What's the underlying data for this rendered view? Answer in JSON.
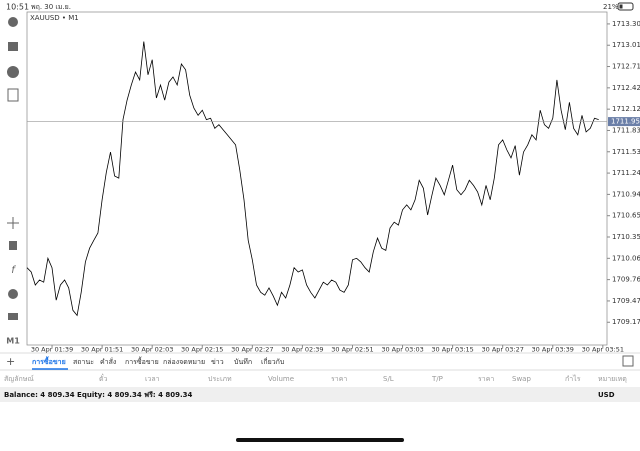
{
  "status_bar": {
    "time": "10:51",
    "date": "พฤ. 30 เม.ย.",
    "battery": "21%"
  },
  "chart_data": {
    "type": "line",
    "title": "XAUUSD • M1",
    "color": "#000000",
    "x": [
      93,
      94,
      95,
      96,
      97,
      98,
      99,
      100,
      101,
      102,
      103,
      104,
      105,
      106,
      107,
      108,
      109,
      110,
      111,
      112,
      113,
      114,
      115,
      116,
      117,
      118,
      119,
      120,
      121,
      122,
      123,
      124,
      125,
      126,
      127,
      128,
      129,
      130,
      131,
      132,
      133,
      134,
      135,
      136,
      137,
      138,
      139,
      140,
      141,
      142,
      143,
      144,
      145,
      146,
      147,
      148,
      149,
      150,
      151,
      152,
      153,
      154,
      155,
      156,
      157,
      158,
      159,
      160,
      161,
      162,
      163,
      164,
      165,
      166,
      167,
      168,
      169,
      170,
      171,
      172,
      173,
      174,
      175,
      176,
      177,
      178,
      179,
      180,
      181,
      182,
      183,
      184,
      185,
      186,
      187,
      188,
      189,
      190,
      191,
      192,
      193,
      194,
      195,
      196,
      197,
      198,
      199,
      200,
      201,
      202,
      203,
      204,
      205,
      206,
      207,
      208,
      209,
      210,
      211,
      212,
      213,
      214,
      215,
      216,
      217,
      218,
      219,
      220,
      221,
      222,
      223,
      224,
      225,
      226,
      227,
      228,
      229,
      230
    ],
    "values": [
      1709.93,
      1709.87,
      1709.69,
      1709.76,
      1709.73,
      1710.06,
      1709.93,
      1709.48,
      1709.69,
      1709.76,
      1709.65,
      1709.34,
      1709.27,
      1709.59,
      1710.01,
      1710.2,
      1710.31,
      1710.41,
      1710.87,
      1711.25,
      1711.53,
      1711.2,
      1711.17,
      1711.98,
      1712.25,
      1712.46,
      1712.64,
      1712.53,
      1713.06,
      1712.6,
      1712.81,
      1712.28,
      1712.46,
      1712.25,
      1712.5,
      1712.57,
      1712.46,
      1712.75,
      1712.67,
      1712.32,
      1712.14,
      1712.04,
      1712.11,
      1711.98,
      1712.0,
      1711.86,
      1711.91,
      1711.84,
      1711.77,
      1711.7,
      1711.63,
      1711.28,
      1710.87,
      1710.31,
      1710.04,
      1709.69,
      1709.59,
      1709.55,
      1709.65,
      1709.54,
      1709.41,
      1709.59,
      1709.51,
      1709.69,
      1709.93,
      1709.87,
      1709.9,
      1709.69,
      1709.59,
      1709.51,
      1709.62,
      1709.73,
      1709.69,
      1709.76,
      1709.73,
      1709.62,
      1709.59,
      1709.69,
      1710.04,
      1710.06,
      1710.01,
      1709.93,
      1709.87,
      1710.15,
      1710.34,
      1710.2,
      1710.17,
      1710.48,
      1710.56,
      1710.52,
      1710.73,
      1710.8,
      1710.73,
      1710.87,
      1711.14,
      1711.03,
      1710.66,
      1710.92,
      1711.17,
      1711.07,
      1710.94,
      1711.14,
      1711.35,
      1711.01,
      1710.94,
      1711.01,
      1711.14,
      1711.07,
      1710.98,
      1710.8,
      1711.07,
      1710.87,
      1711.17,
      1711.63,
      1711.7,
      1711.56,
      1711.45,
      1711.62,
      1711.21,
      1711.53,
      1711.63,
      1711.77,
      1711.7,
      1712.11,
      1711.91,
      1711.86,
      1712.0,
      1712.53,
      1712.11,
      1711.84,
      1712.22,
      1711.86,
      1711.77,
      1712.04,
      1711.81,
      1711.86,
      1712.0,
      1711.98
    ],
    "xlim": [
      93,
      232
    ],
    "xticks": [
      {
        "value": 99,
        "label": "30 Apr 01:39"
      },
      {
        "value": 111,
        "label": "30 Apr 01:51"
      },
      {
        "value": 123,
        "label": "30 Apr 02:03"
      },
      {
        "value": 135,
        "label": "30 Apr 02:15"
      },
      {
        "value": 147,
        "label": "30 Apr 02:27"
      },
      {
        "value": 159,
        "label": "30 Apr 02:39"
      },
      {
        "value": 171,
        "label": "30 Apr 02:51"
      },
      {
        "value": 183,
        "label": "30 Apr 03:03"
      },
      {
        "value": 195,
        "label": "30 Apr 03:15"
      },
      {
        "value": 207,
        "label": "30 Apr 03:27"
      },
      {
        "value": 219,
        "label": "30 Apr 03:39"
      },
      {
        "value": 231,
        "label": "30 Apr 03:51"
      }
    ],
    "ylim": [
      1708.86,
      1713.47
    ],
    "yticks": [
      1713.305,
      {
        "value": 1713.01,
        "label": "1713.010"
      },
      1712.715,
      {
        "value": 1712.42,
        "label": "1712.420"
      },
      1712.125,
      {
        "value": 1711.83,
        "label": "1711.830"
      },
      1711.535,
      {
        "value": 1711.24,
        "label": "1711.240"
      },
      1710.945,
      {
        "value": 1710.65,
        "label": "1710.650"
      },
      1710.355,
      {
        "value": 1710.06,
        "label": "1710.060"
      },
      1709.765,
      {
        "value": 1709.47,
        "label": "1709.470"
      },
      1709.175
    ],
    "current_price": 1711.953
  },
  "tabs": [
    "การซื้อขาย",
    "สถานะ",
    "คำสั่ง",
    "การซื้อขาย",
    "กล่องจดหมาย",
    "ข่าว",
    "บันทึก",
    "เกี่ยวกับ"
  ],
  "table": {
    "columns": [
      "สัญลักษณ์",
      "ตั๋ว",
      "เวลา",
      "ประเภท",
      "Volume",
      "ราคา",
      "S/L",
      "T/P",
      "ราคา",
      "Swap",
      "กำไร",
      "หมายเหตุ"
    ]
  },
  "footer": {
    "summary": "Balance: 4 809.34 Equity: 4 809.34 ฟรี: 4 809.34",
    "currency": "USD"
  }
}
